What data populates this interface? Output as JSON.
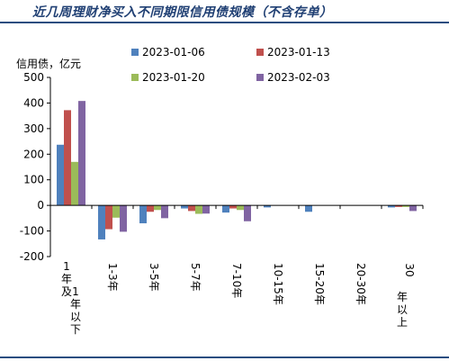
{
  "header": {
    "title": "近几周理财净买入不同期限信用债规模（不含存单）"
  },
  "chart_data": {
    "type": "bar",
    "title": "",
    "ylabel": "信用债，亿元",
    "xlabel": "",
    "ylim": [
      -200,
      500
    ],
    "yticks": [
      -200,
      -100,
      0,
      100,
      200,
      300,
      400,
      500
    ],
    "grid": false,
    "legend_position": "top-right",
    "categories": [
      "1年及1年以下",
      "1-3年",
      "3-5年",
      "5-7年",
      "7-10年",
      "10-15年",
      "15-20年",
      "20-30年",
      "30年以上"
    ],
    "series": [
      {
        "name": "2023-01-06",
        "color": "#4f81bd",
        "values": [
          237,
          -133,
          -70,
          -12,
          -28,
          -8,
          -25,
          0,
          -8
        ]
      },
      {
        "name": "2023-01-13",
        "color": "#c0504d",
        "values": [
          372,
          -93,
          -25,
          -22,
          -12,
          0,
          0,
          0,
          -6
        ]
      },
      {
        "name": "2023-01-20",
        "color": "#9bbb59",
        "values": [
          170,
          -48,
          -18,
          -33,
          -18,
          0,
          0,
          0,
          -6
        ]
      },
      {
        "name": "2023-02-03",
        "color": "#8064a2",
        "values": [
          408,
          -103,
          -50,
          -32,
          -62,
          0,
          0,
          0,
          -22
        ]
      }
    ]
  }
}
